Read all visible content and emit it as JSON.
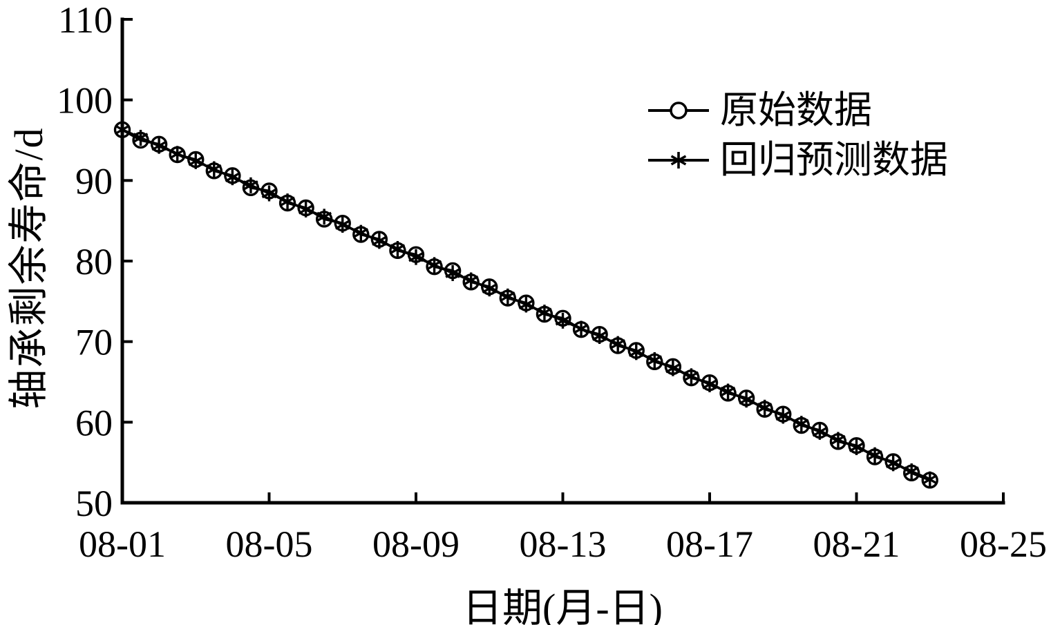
{
  "figure": {
    "background_color": "#ffffff",
    "ink_color": "#000000"
  },
  "chart_data": {
    "type": "line",
    "title": "",
    "xlabel": "日期(月-日)",
    "ylabel": "轴承剩余寿命/d",
    "grid": false,
    "axis_style": "L-shape, ticks inside, no top/right border",
    "legend_position": "upper-right-inside, no border",
    "xlim_days_from_0801": [
      0,
      24
    ],
    "ylim": [
      50,
      110
    ],
    "x_tick_positions_days": [
      0,
      4,
      8,
      12,
      16,
      20,
      24
    ],
    "x_tick_labels": [
      "08-01",
      "08-05",
      "08-09",
      "08-13",
      "08-17",
      "08-21",
      "08-25"
    ],
    "y_ticks": [
      50,
      60,
      70,
      80,
      90,
      100,
      110
    ],
    "x_days": [
      0,
      0.5,
      1,
      1.5,
      2,
      2.5,
      3,
      3.5,
      4,
      4.5,
      5,
      5.5,
      6,
      6.5,
      7,
      7.5,
      8,
      8.5,
      9,
      9.5,
      10,
      10.5,
      11,
      11.5,
      12,
      12.5,
      13,
      13.5,
      14,
      14.5,
      15,
      15.5,
      16,
      16.5,
      17,
      17.5,
      18,
      18.5,
      19,
      19.5,
      20,
      20.5,
      21,
      21.5,
      22
    ],
    "series": [
      {
        "name": "原始数据",
        "marker": "circle",
        "values": [
          96.3,
          95.0,
          94.5,
          93.2,
          92.6,
          91.2,
          90.6,
          89.1,
          88.7,
          87.2,
          86.6,
          85.2,
          84.7,
          83.3,
          82.7,
          81.3,
          80.8,
          79.3,
          78.8,
          77.4,
          76.8,
          75.4,
          74.8,
          73.4,
          72.9,
          71.5,
          70.9,
          69.5,
          68.9,
          67.5,
          66.9,
          65.5,
          64.9,
          63.6,
          63.0,
          61.6,
          61.0,
          59.6,
          59.0,
          57.6,
          57.1,
          55.7,
          55.1,
          53.7,
          52.8
        ]
      },
      {
        "name": "回归预测数据",
        "marker": "asterisk",
        "values": [
          96.3,
          95.3,
          94.3,
          93.3,
          92.4,
          91.4,
          90.4,
          89.4,
          88.4,
          87.4,
          86.4,
          85.5,
          84.5,
          83.5,
          82.5,
          81.5,
          80.5,
          79.5,
          78.5,
          77.6,
          76.6,
          75.6,
          74.6,
          73.6,
          72.6,
          71.6,
          70.7,
          69.7,
          68.7,
          67.7,
          66.7,
          65.7,
          64.7,
          63.8,
          62.8,
          61.8,
          60.8,
          59.8,
          58.8,
          57.8,
          56.9,
          55.9,
          54.9,
          53.9,
          52.9
        ]
      }
    ]
  }
}
